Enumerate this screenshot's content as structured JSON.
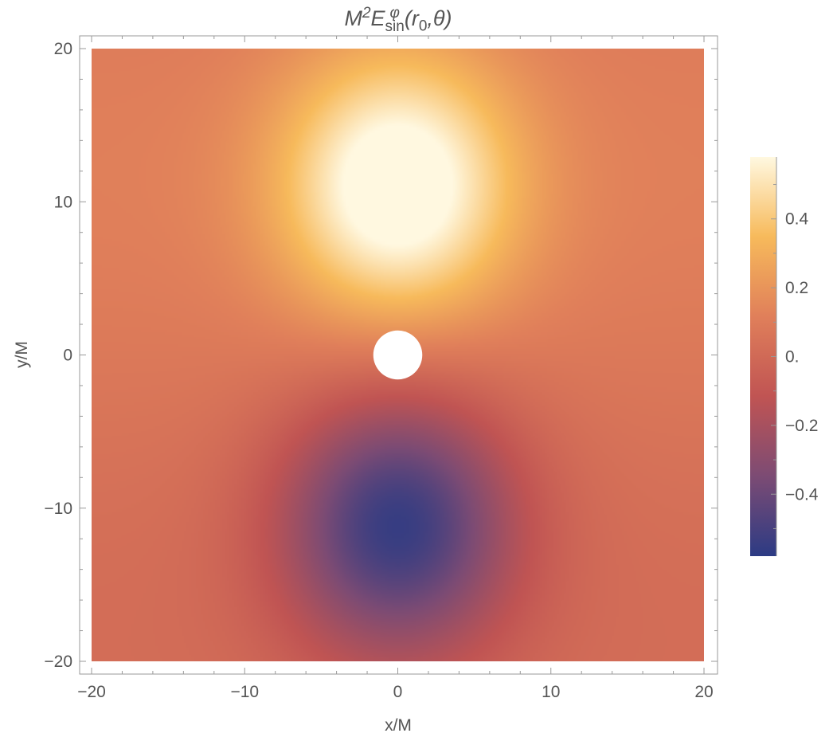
{
  "chart_data": {
    "type": "heatmap",
    "title": {
      "prefix": "M",
      "sup1": "2",
      "main": "E",
      "sup2": "φ",
      "sub": "sin",
      "args": "(r",
      "argsub": "0",
      "rest": ",θ)"
    },
    "xlabel": "x/M",
    "ylabel": "y/M",
    "xlim": [
      -20,
      20
    ],
    "ylim": [
      -20,
      20
    ],
    "xticks": [
      -20,
      -10,
      0,
      10,
      20
    ],
    "yticks": [
      -20,
      -10,
      0,
      10,
      20
    ],
    "xtick_labels": [
      "−20",
      "−10",
      "0",
      "10",
      "20"
    ],
    "ytick_labels": [
      "−20",
      "−10",
      "0",
      "10",
      "20"
    ],
    "excised_disk": {
      "center": [
        0,
        0
      ],
      "radius": 1.6
    },
    "field_extrema": [
      {
        "x": 0,
        "y": 11,
        "value": 0.58
      },
      {
        "x": 0,
        "y": -11,
        "value": -0.58
      }
    ],
    "colorbar": {
      "range": [
        -0.58,
        0.58
      ],
      "ticks": [
        0.4,
        0.2,
        0.0,
        -0.2,
        -0.4
      ],
      "tick_labels": [
        "0.4",
        "0.2",
        "0.",
        "−0.2",
        "−0.4"
      ],
      "colors": [
        "#2c3b84",
        "#7c4b74",
        "#c05453",
        "#e07f5a",
        "#f7ba5b",
        "#fff8e0"
      ]
    },
    "grid": false,
    "legend": "colorbar-right"
  }
}
